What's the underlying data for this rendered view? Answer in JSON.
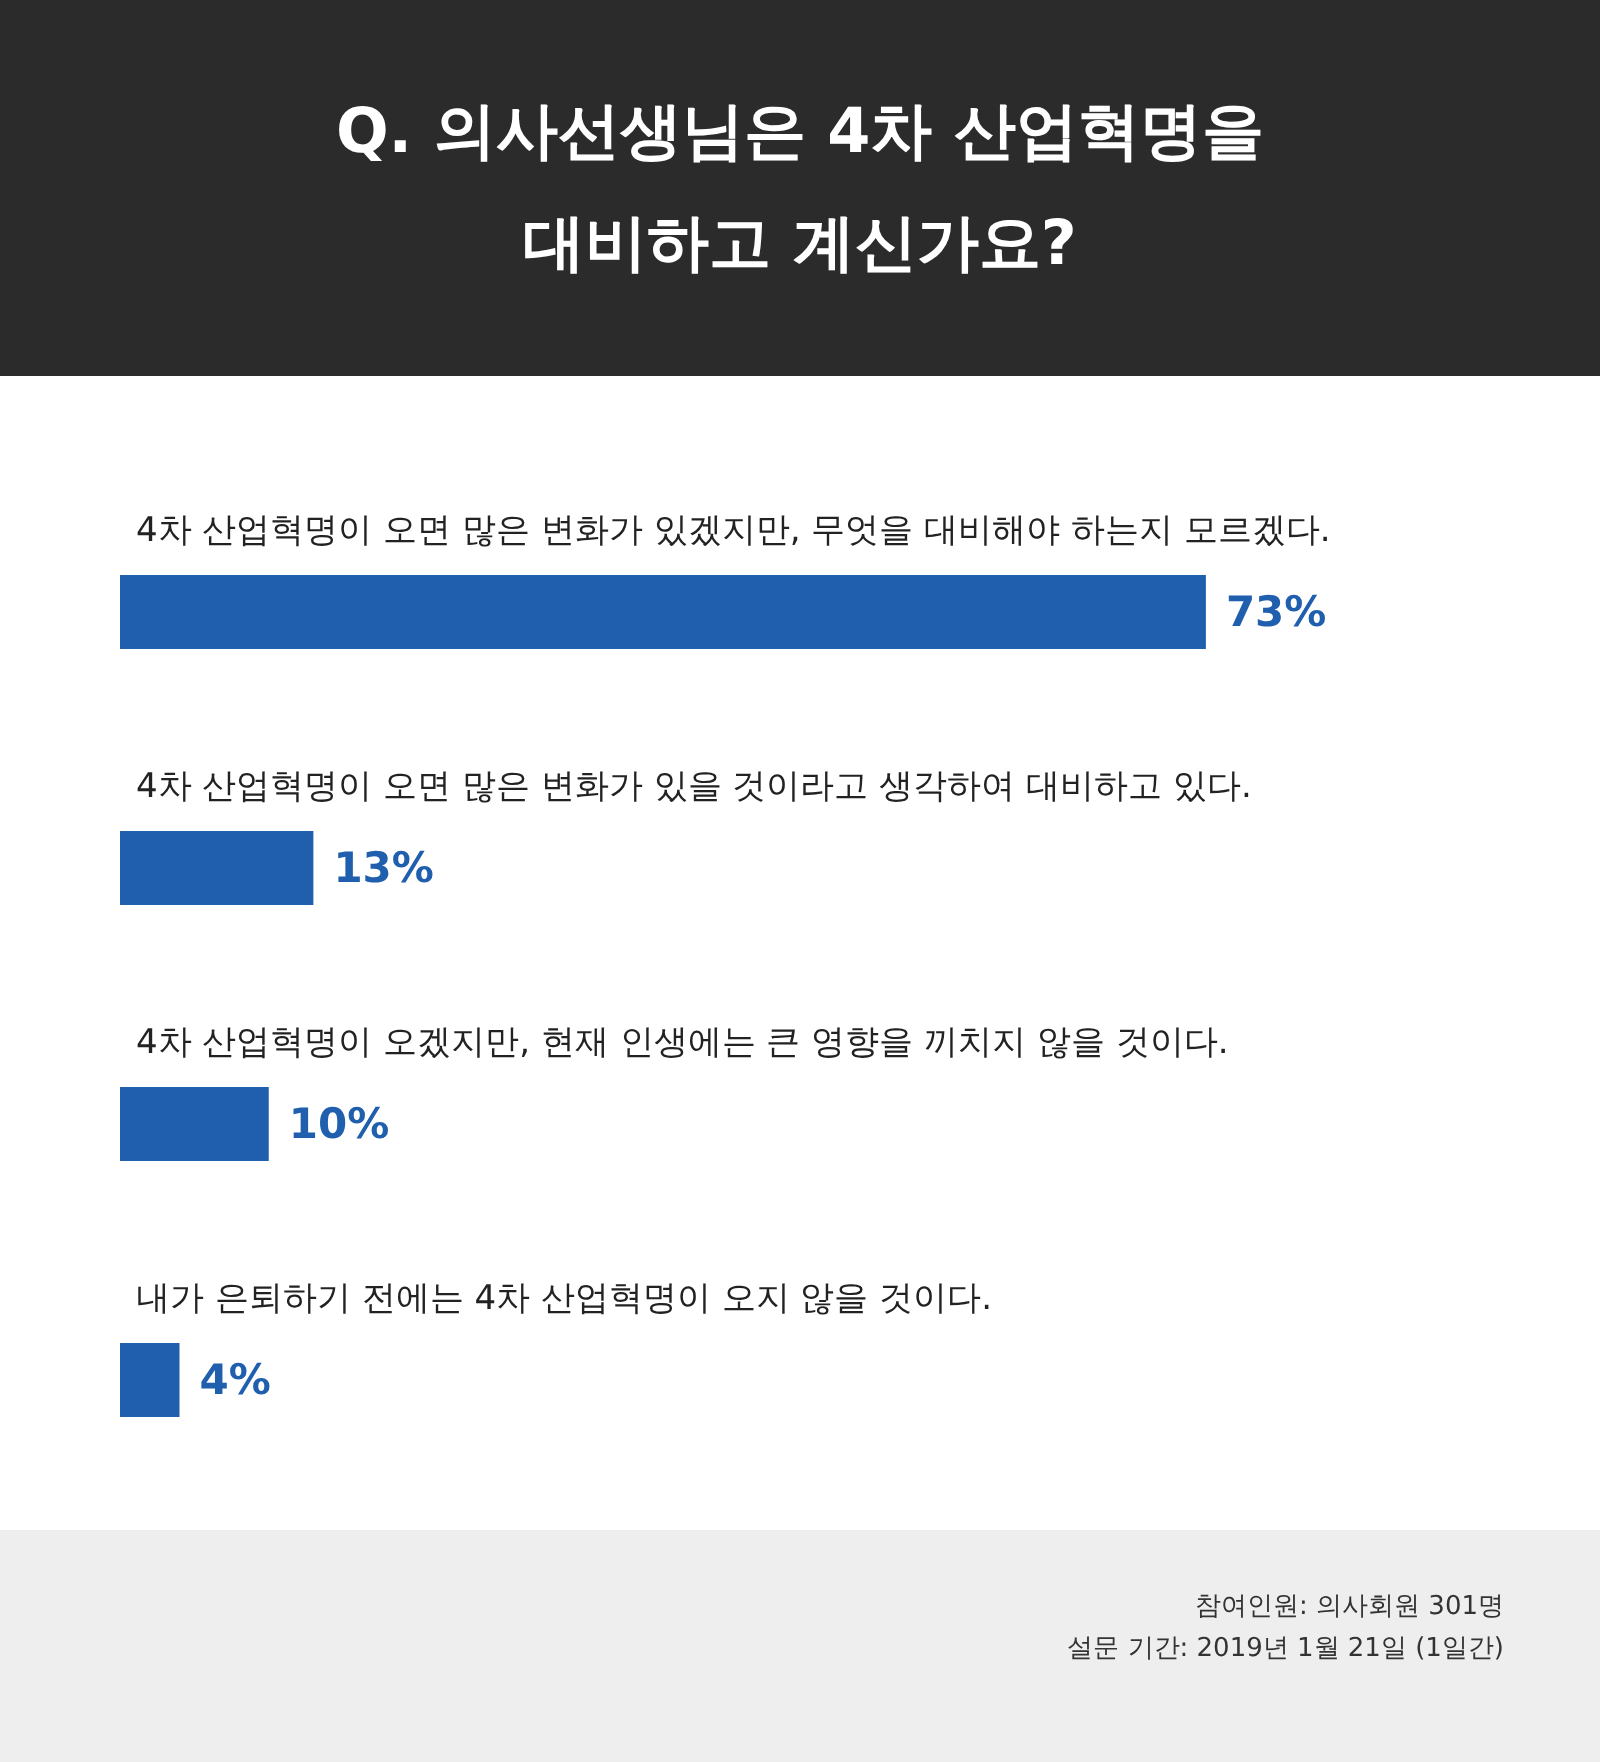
{
  "chart_data": {
    "type": "bar",
    "orientation": "horizontal",
    "title": "Q. 의사선생님은 4차 산업혁명을\n대비하고 계신가요?",
    "categories": [
      "4차 산업혁명이 오면 많은 변화가 있겠지만, 무엇을 대비해야 하는지 모르겠다.",
      "4차 산업혁명이 오면 많은 변화가 있을 것이라고 생각하여 대비하고 있다.",
      "4차 산업혁명이 오겠지만, 현재 인생에는 큰 영향을 끼치지 않을 것이다.",
      "내가 은퇴하기 전에는 4차 산업혁명이 오지 않을 것이다."
    ],
    "values": [
      73,
      13,
      10,
      4
    ],
    "value_labels": [
      "73%",
      "13%",
      "10%",
      "4%"
    ],
    "color": "#1f5fae",
    "annotations": [
      "참여인원: 의사회원 301명",
      "설문 기간: 2019년 1월 21일 (1일간)"
    ]
  }
}
